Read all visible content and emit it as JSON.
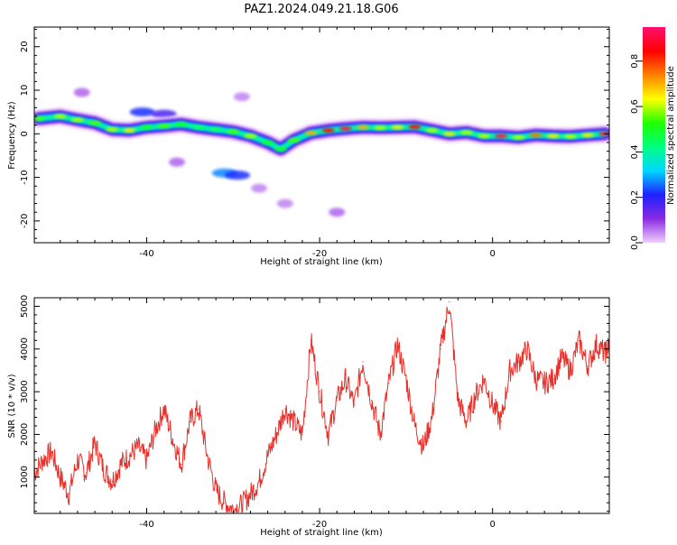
{
  "chart_data": [
    {
      "type": "heatmap",
      "title": "PAZ1.2024.049.21.18.G06",
      "xlabel": "Height of straight line (km)",
      "ylabel": "Frequency (Hz)",
      "xlim": [
        -53,
        13.5
      ],
      "ylim": [
        -25,
        24.5
      ],
      "xticks": [
        -40,
        -20,
        0
      ],
      "yticks": [
        -20,
        -10,
        0,
        10,
        20
      ],
      "colorbar": {
        "label": "Normalized spectral amplitude",
        "range": [
          0.0,
          0.95
        ],
        "ticks": [
          0.0,
          0.2,
          0.4,
          0.6,
          0.8
        ],
        "colormap": [
          "#f0d0ff",
          "#8a2be2",
          "#2020ff",
          "#00d8ff",
          "#00ff80",
          "#20ff00",
          "#ffff00",
          "#ff8000",
          "#ff0000",
          "#ff1070"
        ]
      },
      "ridge": {
        "x": [
          -52.5,
          -50,
          -48,
          -46,
          -44,
          -42,
          -40,
          -38,
          -36,
          -34,
          -32,
          -30,
          -28,
          -26,
          -24.5,
          -23,
          -21,
          -19,
          -17,
          -15,
          -13,
          -11,
          -9,
          -7,
          -5,
          -3,
          -1,
          1,
          3,
          5,
          7,
          9,
          11,
          13
        ],
        "y": [
          3.5,
          4.0,
          3.2,
          2.5,
          1.0,
          0.8,
          1.5,
          1.8,
          2.2,
          1.5,
          1.0,
          0.5,
          -0.5,
          -2.0,
          -3.5,
          -1.5,
          0.2,
          0.8,
          1.2,
          1.5,
          1.4,
          1.5,
          1.6,
          0.8,
          0.0,
          0.3,
          -0.5,
          -0.5,
          -0.8,
          -0.3,
          -0.5,
          -0.6,
          -0.3,
          0.0
        ],
        "amplitude": [
          0.55,
          0.6,
          0.6,
          0.55,
          0.6,
          0.65,
          0.5,
          0.55,
          0.5,
          0.45,
          0.45,
          0.55,
          0.6,
          0.5,
          0.5,
          0.55,
          0.7,
          0.85,
          0.9,
          0.7,
          0.6,
          0.65,
          0.85,
          0.6,
          0.65,
          0.6,
          0.6,
          0.9,
          0.6,
          0.75,
          0.65,
          0.6,
          0.65,
          0.9
        ]
      },
      "patches": [
        {
          "x": -40.5,
          "y": 5.0,
          "amplitude": 0.2
        },
        {
          "x": -38.0,
          "y": 4.5,
          "amplitude": 0.15
        },
        {
          "x": -31.0,
          "y": -9.0,
          "amplitude": 0.25
        },
        {
          "x": -29.5,
          "y": -9.5,
          "amplitude": 0.2
        },
        {
          "x": -47.5,
          "y": 9.5,
          "amplitude": 0.05
        },
        {
          "x": -36.5,
          "y": -6.5,
          "amplitude": 0.05
        },
        {
          "x": -18.0,
          "y": -18.0,
          "amplitude": 0.05
        },
        {
          "x": -24.0,
          "y": -16.0,
          "amplitude": 0.03
        },
        {
          "x": -29.0,
          "y": 8.5,
          "amplitude": 0.03
        },
        {
          "x": -27.0,
          "y": -12.5,
          "amplitude": 0.03
        }
      ]
    },
    {
      "type": "line",
      "xlabel": "Height of straight line (km)",
      "ylabel": "SNR (10 * v/v)",
      "xlim": [
        -53,
        13.5
      ],
      "ylim": [
        150,
        5200
      ],
      "xticks": [
        -40,
        -20,
        0
      ],
      "yticks": [
        1000,
        2000,
        3000,
        4000,
        5000
      ],
      "color": "#e8302a",
      "series": [
        {
          "x": [
            -53,
            -52,
            -51,
            -50,
            -49,
            -48,
            -47,
            -46,
            -45,
            -44,
            -43,
            -42,
            -41,
            -40,
            -39,
            -38,
            -37,
            -36,
            -35,
            -34,
            -33,
            -32,
            -31,
            -30,
            -29,
            -28,
            -27,
            -26,
            -25,
            -24,
            -23,
            -22,
            -21,
            -20,
            -19,
            -18,
            -17,
            -16,
            -15,
            -14,
            -13,
            -12,
            -11,
            -10,
            -9,
            -8,
            -7,
            -6,
            -5,
            -4,
            -3,
            -2,
            -1,
            0,
            1,
            2,
            3,
            4,
            5,
            6,
            7,
            8,
            9,
            10,
            11,
            12,
            13,
            13.5
          ],
          "values": [
            1100,
            1400,
            1600,
            1000,
            600,
            1400,
            1100,
            1800,
            1200,
            900,
            1300,
            1500,
            1700,
            1400,
            2100,
            2600,
            1900,
            1300,
            2300,
            2600,
            1500,
            700,
            400,
            250,
            350,
            600,
            900,
            1500,
            2000,
            2600,
            2300,
            2000,
            4200,
            3000,
            2000,
            2800,
            3300,
            2700,
            3700,
            2800,
            2000,
            3200,
            4100,
            3300,
            2200,
            1700,
            2400,
            4000,
            5100,
            2800,
            2300,
            2900,
            3300,
            2700,
            2300,
            3500,
            3700,
            4000,
            3300,
            3200,
            3300,
            3800,
            3500,
            4200,
            3600,
            4100,
            3900,
            4100
          ]
        }
      ]
    }
  ]
}
